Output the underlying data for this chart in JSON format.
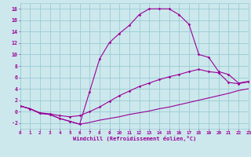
{
  "bg_color": "#cce8ec",
  "grid_color": "#99ccd4",
  "line_color": "#990099",
  "xlabel": "Windchill (Refroidissement éolien,°C)",
  "xlim": [
    0,
    23
  ],
  "ylim": [
    -3,
    19
  ],
  "xticks": [
    0,
    1,
    2,
    3,
    4,
    5,
    6,
    7,
    8,
    9,
    10,
    11,
    12,
    13,
    14,
    15,
    16,
    17,
    18,
    19,
    20,
    21,
    22,
    23
  ],
  "yticks": [
    -2,
    0,
    2,
    4,
    6,
    8,
    10,
    12,
    14,
    16,
    18
  ],
  "line1_x": [
    0,
    1,
    2,
    3,
    4,
    5,
    6,
    7,
    8,
    9,
    10,
    11,
    12,
    13,
    14,
    15,
    16,
    17,
    18,
    19,
    20,
    21,
    22,
    23
  ],
  "line1_y": [
    1.0,
    0.5,
    -0.3,
    -0.5,
    -1.2,
    -1.7,
    -2.2,
    -1.9,
    -1.5,
    -1.2,
    -0.9,
    -0.5,
    -0.2,
    0.1,
    0.5,
    0.8,
    1.2,
    1.6,
    2.0,
    2.4,
    2.8,
    3.2,
    3.7,
    4.0
  ],
  "line2_x": [
    0,
    1,
    2,
    3,
    4,
    5,
    6,
    7,
    8,
    9,
    10,
    11,
    12,
    13,
    14,
    15,
    16,
    17,
    18,
    19,
    20,
    21,
    22,
    23
  ],
  "line2_y": [
    1.0,
    0.5,
    -0.2,
    -0.4,
    -0.7,
    -0.9,
    -0.7,
    0.0,
    0.8,
    1.8,
    2.8,
    3.6,
    4.4,
    5.0,
    5.6,
    6.1,
    6.5,
    7.0,
    7.4,
    7.0,
    6.8,
    5.1,
    4.9,
    5.2
  ],
  "line3_x": [
    0,
    1,
    2,
    3,
    4,
    5,
    6,
    7,
    8,
    9,
    10,
    11,
    12,
    13,
    14,
    15,
    16,
    17,
    18,
    19,
    20,
    21,
    22,
    23
  ],
  "line3_y": [
    1.0,
    0.5,
    -0.3,
    -0.5,
    -1.2,
    -1.7,
    -2.2,
    3.5,
    9.2,
    12.1,
    13.7,
    15.1,
    17.0,
    18.0,
    18.0,
    18.0,
    17.0,
    15.3,
    10.0,
    9.5,
    7.0,
    6.5,
    5.0,
    5.3
  ],
  "line1_markers": false,
  "line2_markers": true,
  "line3_markers": true
}
